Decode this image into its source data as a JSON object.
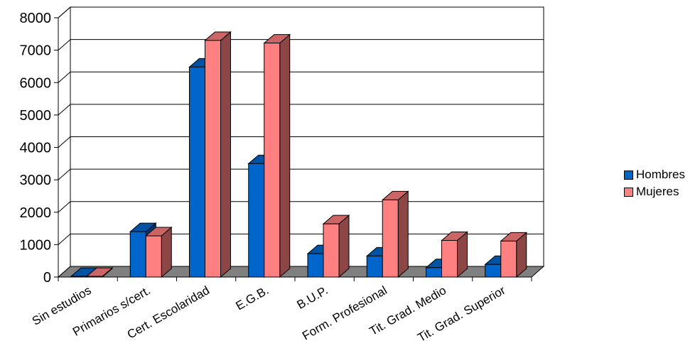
{
  "chart_data": {
    "type": "bar",
    "categories": [
      "Sin estudios",
      "Primarios s/cert.",
      "Cert. Escolaridad",
      "E.G.B.",
      "B.U.P.",
      "Form. Profesional",
      "Tit. Grad. Medio",
      "Tit. Grad. Superior"
    ],
    "series": [
      {
        "name": "Hombres",
        "color": "#0066cc",
        "values": [
          20,
          1400,
          6480,
          3500,
          720,
          650,
          290,
          390
        ]
      },
      {
        "name": "Mujeres",
        "color": "#ff8080",
        "values": [
          20,
          1270,
          7300,
          7220,
          1640,
          2380,
          1130,
          1110
        ]
      }
    ],
    "ylim": [
      0,
      8000
    ],
    "yticks": [
      "0",
      "1000",
      "2000",
      "3000",
      "4000",
      "5000",
      "6000",
      "7000",
      "8000"
    ],
    "grid": true,
    "legend_position": "right",
    "three_d": true
  }
}
